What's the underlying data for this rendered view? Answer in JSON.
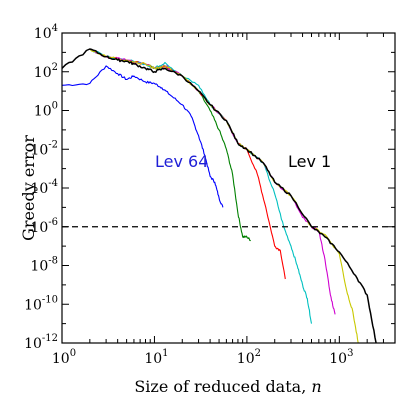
{
  "chart_data": {
    "type": "line",
    "xlabel": "Size of reduced data,",
    "xlabel_var": "n",
    "ylabel": "Greedy error",
    "xscale": "log",
    "yscale": "log",
    "xlim": [
      1,
      4000
    ],
    "ylim": [
      1e-12,
      10000.0
    ],
    "x_ticks": [
      {
        "value": 1,
        "base": "10",
        "exp": "0"
      },
      {
        "value": 10,
        "base": "10",
        "exp": "1"
      },
      {
        "value": 100,
        "base": "10",
        "exp": "2"
      },
      {
        "value": 1000,
        "base": "10",
        "exp": "3"
      }
    ],
    "y_ticks": [
      {
        "value": 10000.0,
        "base": "10",
        "exp": "4"
      },
      {
        "value": 100.0,
        "base": "10",
        "exp": "2"
      },
      {
        "value": 1,
        "base": "10",
        "exp": "0"
      },
      {
        "value": 0.01,
        "base": "10",
        "exp": "-2"
      },
      {
        "value": 0.0001,
        "base": "10",
        "exp": "-4"
      },
      {
        "value": 1e-06,
        "base": "10",
        "exp": "-6"
      },
      {
        "value": 1e-08,
        "base": "10",
        "exp": "-8"
      },
      {
        "value": 1e-10,
        "base": "10",
        "exp": "-10"
      },
      {
        "value": 1e-12,
        "base": "10",
        "exp": "-12"
      }
    ],
    "reference_line": {
      "y": 1e-06,
      "style": "dashed",
      "color": "#000000"
    },
    "annotations": [
      {
        "text": "Lev 64",
        "x": 270,
        "y": 0.0018,
        "color": "#1f1fd6"
      },
      {
        "text": "Lev 1",
        "x": 290,
        "y": 0.0018,
        "color": "#000000"
      }
    ],
    "series": [
      {
        "color": "#0000ff",
        "x": [
          1,
          2,
          3,
          4,
          5,
          6,
          8,
          10,
          12,
          15,
          20,
          25,
          30,
          35,
          40,
          45,
          50,
          55
        ],
        "y": [
          20,
          25,
          200,
          80,
          40,
          60,
          30,
          25,
          15,
          6,
          2,
          0.5,
          0.05,
          0.005,
          0.0004,
          0.0002,
          3e-05,
          1e-05
        ]
      },
      {
        "color": "#008000",
        "x": [
          2,
          3,
          5,
          8,
          10,
          13,
          20,
          30,
          40,
          50,
          60,
          70,
          80,
          90,
          100,
          110
        ],
        "y": [
          1500,
          600,
          400,
          250,
          150,
          200,
          60,
          10,
          1,
          0.1,
          0.01,
          0.0005,
          5e-06,
          3e-07,
          3e-07,
          2e-07
        ]
      },
      {
        "color": "#ff0000",
        "x": [
          2,
          3,
          5,
          8,
          10,
          13,
          20,
          30,
          40,
          60,
          80,
          100,
          130,
          160,
          200,
          230,
          260
        ],
        "y": [
          1500,
          600,
          400,
          250,
          150,
          200,
          60,
          10,
          2,
          0.3,
          0.02,
          0.01,
          0.0005,
          1e-05,
          1e-07,
          6e-08,
          2e-09
        ]
      },
      {
        "color": "#00c0c0",
        "x": [
          2,
          3,
          5,
          8,
          10,
          13,
          20,
          30,
          40,
          60,
          80,
          100,
          150,
          200,
          250,
          300,
          350,
          400,
          450,
          500
        ],
        "y": [
          1500,
          600,
          400,
          250,
          150,
          300,
          60,
          20,
          2,
          0.3,
          0.02,
          0.01,
          0.002,
          5e-05,
          1e-06,
          1e-07,
          1e-08,
          1e-09,
          2e-10,
          1e-11
        ]
      },
      {
        "color": "#d000d0",
        "x": [
          2,
          3,
          5,
          8,
          10,
          13,
          20,
          30,
          40,
          60,
          80,
          100,
          150,
          200,
          300,
          400,
          500,
          600,
          700,
          800,
          900
        ],
        "y": [
          1500,
          600,
          400,
          250,
          150,
          200,
          60,
          10,
          2,
          0.3,
          0.02,
          0.01,
          0.002,
          0.0002,
          4e-05,
          3e-06,
          1e-06,
          6e-07,
          2e-08,
          3e-10,
          3e-11
        ]
      },
      {
        "color": "#c8c800",
        "x": [
          2,
          3,
          5,
          8,
          10,
          13,
          20,
          30,
          40,
          60,
          80,
          100,
          150,
          200,
          300,
          500,
          700,
          1000,
          1200,
          1400,
          1600
        ],
        "y": [
          1500,
          600,
          400,
          250,
          150,
          200,
          60,
          10,
          2,
          0.3,
          0.02,
          0.01,
          0.002,
          0.0002,
          4e-05,
          1e-06,
          4e-07,
          4e-08,
          5e-10,
          4e-11,
          1e-12
        ]
      },
      {
        "color": "#000000",
        "x": [
          1,
          2,
          3,
          4,
          5,
          6,
          8,
          10,
          13,
          20,
          30,
          40,
          60,
          80,
          100,
          150,
          200,
          300,
          500,
          700,
          1000,
          1500,
          2000,
          2500
        ],
        "y": [
          150,
          1500,
          600,
          400,
          350,
          250,
          150,
          100,
          150,
          60,
          10,
          2,
          0.3,
          0.02,
          0.01,
          0.002,
          0.0002,
          4e-05,
          1e-06,
          3e-07,
          5e-08,
          3e-09,
          3e-10,
          1e-12
        ]
      }
    ]
  }
}
